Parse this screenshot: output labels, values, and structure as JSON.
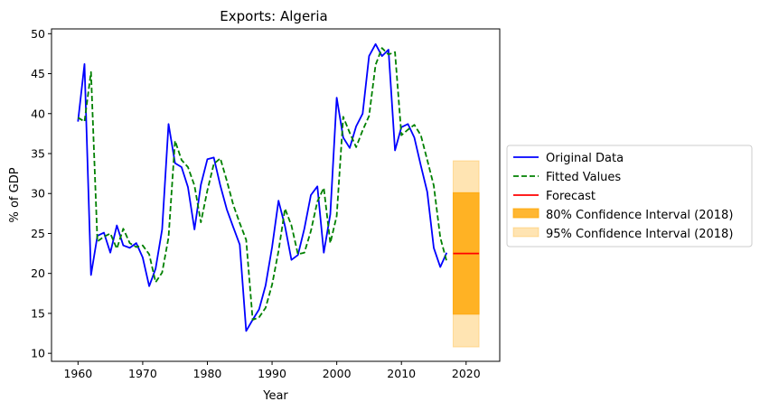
{
  "chart_data": {
    "type": "line",
    "title": "Exports: Algeria",
    "xlabel": "Year",
    "ylabel": "% of GDP",
    "xlim": [
      1955.9,
      2025.2
    ],
    "ylim": [
      9.0,
      50.6
    ],
    "xticks": [
      1960,
      1970,
      1980,
      1990,
      2000,
      2010,
      2020
    ],
    "yticks": [
      10,
      15,
      20,
      25,
      30,
      35,
      40,
      45,
      50
    ],
    "grid": false,
    "legend_position": "outside-right",
    "series": [
      {
        "name": "Original Data",
        "color": "#0000ff",
        "style": "solid",
        "x": [
          1960,
          1961,
          1962,
          1963,
          1964,
          1965,
          1966,
          1967,
          1968,
          1969,
          1970,
          1971,
          1972,
          1973,
          1974,
          1975,
          1976,
          1977,
          1978,
          1979,
          1980,
          1981,
          1982,
          1983,
          1984,
          1985,
          1986,
          1987,
          1988,
          1989,
          1990,
          1991,
          1992,
          1993,
          1994,
          1995,
          1996,
          1997,
          1998,
          1999,
          2000,
          2001,
          2002,
          2003,
          2004,
          2005,
          2006,
          2007,
          2008,
          2009,
          2010,
          2011,
          2012,
          2013,
          2014,
          2015,
          2016,
          2017
        ],
        "values": [
          39.0,
          46.2,
          19.8,
          24.7,
          25.1,
          22.6,
          26.0,
          23.5,
          23.2,
          23.8,
          22.0,
          18.4,
          20.6,
          25.5,
          38.7,
          33.8,
          33.3,
          30.8,
          25.5,
          31.1,
          34.3,
          34.5,
          31.0,
          28.0,
          25.8,
          23.6,
          12.8,
          14.2,
          15.5,
          18.5,
          23.3,
          29.1,
          25.9,
          21.7,
          22.3,
          25.6,
          29.8,
          30.9,
          22.6,
          27.4,
          42.0,
          37.0,
          35.7,
          38.4,
          40.0,
          47.2,
          48.7,
          47.2,
          48.0,
          35.4,
          38.3,
          38.7,
          37.0,
          33.5,
          30.2,
          23.2,
          20.8,
          22.6
        ]
      },
      {
        "name": "Fitted Values",
        "color": "#008000",
        "style": "dashed",
        "x": [
          1960,
          1961,
          1962,
          1963,
          1964,
          1965,
          1966,
          1967,
          1968,
          1969,
          1970,
          1971,
          1972,
          1973,
          1974,
          1975,
          1976,
          1977,
          1978,
          1979,
          1980,
          1981,
          1982,
          1983,
          1984,
          1985,
          1986,
          1987,
          1988,
          1989,
          1990,
          1991,
          1992,
          1993,
          1994,
          1995,
          1996,
          1997,
          1998,
          1999,
          2000,
          2001,
          2002,
          2003,
          2004,
          2005,
          2006,
          2007,
          2008,
          2009,
          2010,
          2011,
          2012,
          2013,
          2014,
          2015,
          2016,
          2017
        ],
        "values": [
          39.5,
          39.0,
          45.2,
          24.0,
          24.6,
          25.0,
          23.1,
          25.6,
          23.8,
          23.3,
          23.5,
          22.4,
          18.9,
          20.1,
          24.5,
          36.6,
          34.2,
          33.3,
          31.0,
          26.4,
          30.4,
          33.7,
          34.4,
          31.6,
          28.6,
          26.3,
          24.2,
          14.2,
          14.5,
          15.7,
          18.6,
          22.8,
          28.1,
          26.0,
          22.4,
          22.6,
          25.3,
          29.0,
          30.7,
          23.8,
          27.2,
          39.6,
          37.6,
          35.8,
          37.9,
          39.7,
          46.1,
          48.2,
          47.4,
          47.7,
          37.3,
          38.0,
          38.6,
          37.3,
          34.2,
          31.0,
          24.5,
          21.5
        ]
      },
      {
        "name": "Forecast",
        "color": "#ff0000",
        "style": "solid",
        "x": [
          2018,
          2022
        ],
        "values": [
          22.5,
          22.5
        ]
      }
    ],
    "intervals": [
      {
        "name": "80% Confidence Interval (2018)",
        "color": "#ffa500",
        "opacity": 0.8,
        "x": [
          2018,
          2022
        ],
        "low": 14.9,
        "high": 30.1
      },
      {
        "name": "95% Confidence Interval (2018)",
        "color": "#ffa500",
        "opacity": 0.3,
        "x": [
          2018,
          2022
        ],
        "low": 10.8,
        "high": 34.1
      }
    ]
  }
}
